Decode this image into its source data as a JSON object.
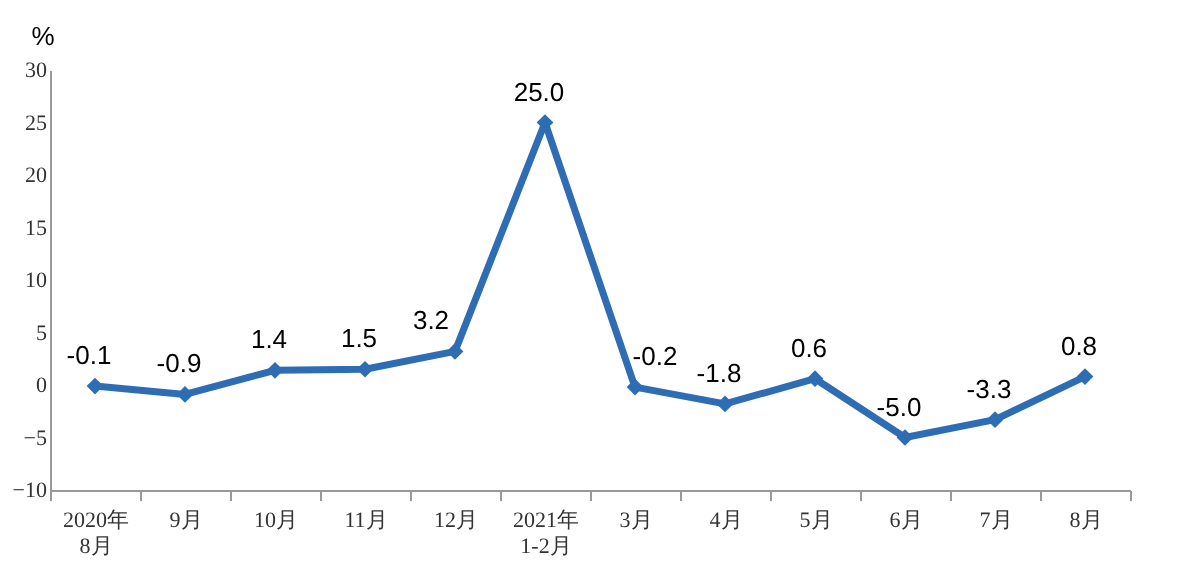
{
  "chart_data": {
    "type": "line",
    "ylabel": "%",
    "categories": [
      "2020年\n8月",
      "9月",
      "10月",
      "11月",
      "12月",
      "2021年\n1-2月",
      "3月",
      "4月",
      "5月",
      "6月",
      "7月",
      "8月"
    ],
    "series": [
      {
        "color": "#2e6db4",
        "values": [
          -0.1,
          -0.9,
          1.4,
          1.5,
          3.2,
          25.0,
          -0.2,
          -1.8,
          0.6,
          -5.0,
          -3.3,
          0.8
        ],
        "value_labels": [
          "-0.1",
          "-0.9",
          "1.4",
          "1.5",
          "3.2",
          "25.0",
          "-0.2",
          "-1.8",
          "0.6",
          "-5.0",
          "-3.3",
          "0.8"
        ]
      }
    ],
    "ylim": [
      -10,
      30
    ],
    "yticks": [
      -10,
      -5,
      0,
      5,
      10,
      15,
      20,
      25,
      30
    ],
    "grid": false,
    "legend": false,
    "marker": "diamond",
    "line_style": "solid"
  }
}
